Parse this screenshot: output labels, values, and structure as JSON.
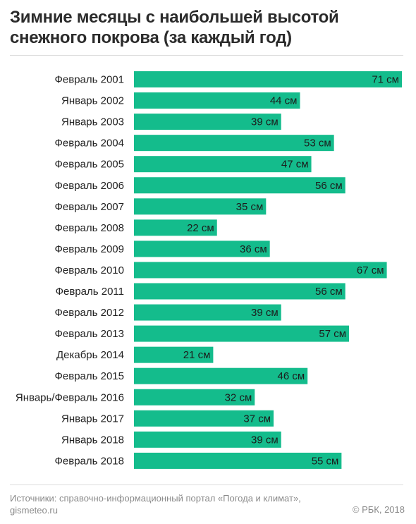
{
  "title": "Зимние месяцы с наибольшей высотой снежного покрова (за каждый год)",
  "footer": {
    "source": "Источники: справочно-информационный портал «Погода и климат», gismeteo.ru",
    "copyright": "© РБК, 2018"
  },
  "colors": {
    "bar": "#14bc8c"
  },
  "chart_data": {
    "type": "bar",
    "orientation": "horizontal",
    "title": "Зимние месяцы с наибольшей высотой снежного покрова (за каждый год)",
    "unit": "см",
    "categories": [
      "Февраль 2001",
      "Январь 2002",
      "Январь 2003",
      "Февраль 2004",
      "Февраль 2005",
      "Февраль 2006",
      "Февраль 2007",
      "Февраль 2008",
      "Февраль 2009",
      "Февраль 2010",
      "Февраль 2011",
      "Февраль 2012",
      "Февраль 2013",
      "Декабрь 2014",
      "Февраль 2015",
      "Январь/Февраль 2016",
      "Январь 2017",
      "Январь 2018",
      "Февраль 2018"
    ],
    "values": [
      71,
      44,
      39,
      53,
      47,
      56,
      35,
      22,
      36,
      67,
      56,
      39,
      57,
      21,
      46,
      32,
      37,
      39,
      55
    ],
    "value_labels": [
      "71 см",
      "44 см",
      "39 см",
      "53 см",
      "47 см",
      "56 см",
      "35 см",
      "22 см",
      "36 см",
      "67 см",
      "56 см",
      "39 см",
      "57 см",
      "21 см",
      "46 см",
      "32 см",
      "37 см",
      "39 см",
      "55 см"
    ],
    "xlim": [
      0,
      71
    ],
    "grid": false,
    "legend": "none"
  }
}
